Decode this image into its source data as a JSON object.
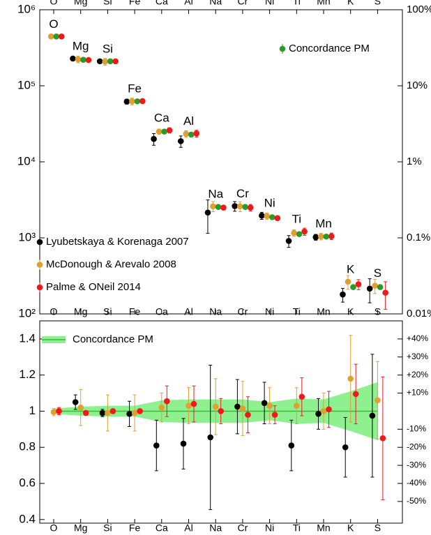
{
  "chart_data": [
    {
      "type": "scatter",
      "categories": [
        "O",
        "Mg",
        "Si",
        "Fe",
        "Ca",
        "Al",
        "Na",
        "Cr",
        "Ni",
        "Ti",
        "Mn",
        "K",
        "S"
      ],
      "log_scale": true,
      "ylim": [
        100,
        1000000
      ],
      "yticks": [
        {
          "value": 100,
          "label": "10²"
        },
        {
          "value": 1000,
          "label": "10³"
        },
        {
          "value": 10000,
          "label": "10⁴"
        },
        {
          "value": 100000,
          "label": "10⁵"
        },
        {
          "value": 1000000,
          "label": "10⁶"
        }
      ],
      "y2lim": [
        0.01,
        100
      ],
      "y2ticks": [
        {
          "value": 0.01,
          "label": "0.01%"
        },
        {
          "value": 0.1,
          "label": "0.1%"
        },
        {
          "value": 1,
          "label": "1%"
        },
        {
          "value": 10,
          "label": "10%"
        },
        {
          "value": 100,
          "label": "100%"
        }
      ],
      "series": [
        {
          "name": "Lyubetskaya & Korenaga 2007",
          "color": "#000000",
          "values": [
            null,
            228000,
            210000,
            62000,
            20000,
            18700,
            2150,
            2620,
            1960,
            910,
            1020,
            180,
            215
          ],
          "errors": [
            null,
            9000,
            4000,
            4500,
            3500,
            3200,
            1000,
            380,
            210,
            160,
            90,
            37,
            75
          ]
        },
        {
          "name": "McDonough & Arevalo 2008",
          "color": "#dfa030",
          "values": [
            445000,
            223000,
            208000,
            62600,
            25000,
            23300,
            2600,
            2600,
            1930,
            1160,
            1045,
            265,
            235
          ],
          "errors": [
            9000,
            22000,
            21000,
            6300,
            2000,
            2300,
            400,
            390,
            190,
            115,
            105,
            55,
            50
          ]
        },
        {
          "name": "Concordance PM",
          "color": "#2a9a2a",
          "values": [
            445000,
            220000,
            210000,
            62500,
            25000,
            22800,
            2550,
            2550,
            1870,
            1120,
            1040,
            225,
            225
          ]
        },
        {
          "name": "Palme & ONeil 2014",
          "color": "#ee1a1a",
          "values": [
            445000,
            218000,
            210000,
            62900,
            26000,
            23600,
            2500,
            2500,
            1820,
            1210,
            1050,
            245,
            190
          ],
          "errors": [
            9000,
            2000,
            2000,
            600,
            2100,
            2400,
            180,
            250,
            90,
            130,
            105,
            37,
            75
          ]
        }
      ]
    },
    {
      "type": "scatter",
      "categories": [
        "O",
        "Mg",
        "Si",
        "Fe",
        "Ca",
        "Al",
        "Na",
        "Cr",
        "Ni",
        "Ti",
        "Mn",
        "K",
        "S"
      ],
      "ylim": [
        0.38,
        1.5
      ],
      "yticks": [
        0.4,
        0.6,
        0.8,
        1.0,
        1.2,
        1.4
      ],
      "y2lim": [
        -62,
        50
      ],
      "y2ticks": [
        {
          "value": -50,
          "label": "-50%"
        },
        {
          "value": -40,
          "label": "-40%"
        },
        {
          "value": -30,
          "label": "-30%"
        },
        {
          "value": -20,
          "label": "-20%"
        },
        {
          "value": -10,
          "label": "-10%"
        },
        {
          "value": 10,
          "label": "+10%"
        },
        {
          "value": 20,
          "label": "+20%"
        },
        {
          "value": 30,
          "label": "+30%"
        },
        {
          "value": 40,
          "label": "+40%"
        }
      ],
      "band": {
        "name": "Concordance PM",
        "color": "#8ff08f",
        "line_color": "#3cb83c",
        "values": [
          1,
          1,
          1,
          1,
          1,
          1,
          1,
          1,
          1,
          1,
          1,
          1,
          1
        ],
        "errors": [
          0.015,
          0.025,
          0.03,
          0.03,
          0.06,
          0.065,
          0.065,
          0.065,
          0.05,
          0.07,
          0.065,
          0.11,
          0.16
        ]
      },
      "series": [
        {
          "color": "#000000",
          "values": [
            null,
            1.05,
            0.99,
            0.985,
            0.81,
            0.82,
            0.855,
            1.025,
            1.045,
            0.81,
            0.985,
            0.8,
            0.975
          ],
          "errors": [
            null,
            0.04,
            0.02,
            0.07,
            0.14,
            0.14,
            0.4,
            0.15,
            0.115,
            0.14,
            0.085,
            0.165,
            0.34
          ]
        },
        {
          "color": "#dfa030",
          "values": [
            0.995,
            1.02,
            0.99,
            0.99,
            1.02,
            1.03,
            1.025,
            1.015,
            1.03,
            1.03,
            1.0,
            1.18,
            1.06
          ],
          "errors": [
            0.02,
            0.1,
            0.1,
            0.1,
            0.08,
            0.1,
            0.155,
            0.15,
            0.1,
            0.1,
            0.1,
            0.24,
            0.215
          ]
        },
        {
          "color": "#ee1a1a",
          "values": [
            1.0,
            0.99,
            1.0,
            1.0,
            1.055,
            1.04,
            1.0,
            0.98,
            0.98,
            1.08,
            1.01,
            1.095,
            0.85
          ],
          "errors": [
            0.02,
            0.01,
            0.01,
            0.01,
            0.085,
            0.1,
            0.07,
            0.1,
            0.05,
            0.105,
            0.1,
            0.165,
            0.34
          ]
        }
      ]
    }
  ]
}
